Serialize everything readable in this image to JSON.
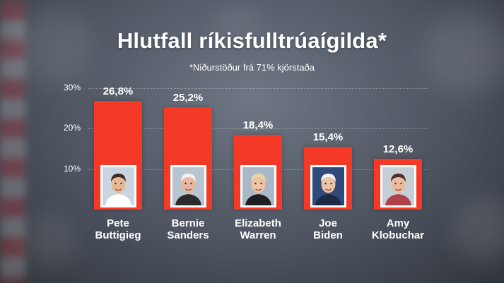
{
  "header": {
    "title": "Hlutfall ríkisfulltrúaígilda*",
    "subtitle": "*Niðurstöður frá 71% kjörstaða"
  },
  "chart_data": {
    "type": "bar",
    "title": "Hlutfall ríkisfulltrúaígilda*",
    "subtitle": "*Niðurstöður frá 71% kjörstaða",
    "categories": [
      "Pete\nButtigieg",
      "Bernie\nSanders",
      "Elizabeth\nWarren",
      "Joe\nBiden",
      "Amy\nKlobuchar"
    ],
    "values": [
      26.8,
      25.2,
      18.4,
      15.4,
      12.6
    ],
    "value_labels": [
      "26,8%",
      "25,2%",
      "18,4%",
      "15,4%",
      "12,6%"
    ],
    "yticks": [
      {
        "value": 10,
        "label": "10%"
      },
      {
        "value": 20,
        "label": "20%"
      },
      {
        "value": 30,
        "label": "30%"
      }
    ],
    "ylim": [
      0,
      30
    ],
    "grid": true,
    "bar_color": "#f43a26"
  }
}
